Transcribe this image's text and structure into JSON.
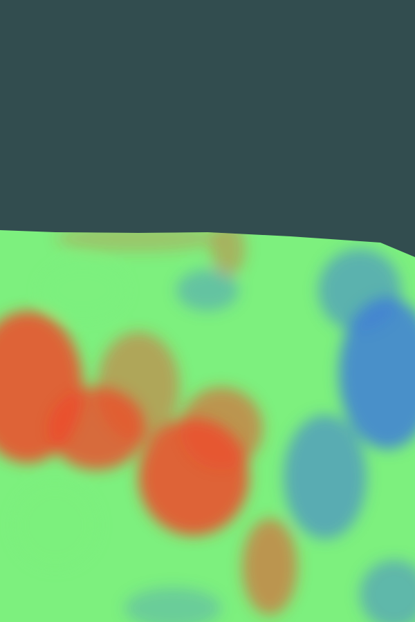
{
  "scene": {
    "background_color": "#324d4f",
    "colormap": {
      "low": "#3f7fd6",
      "mid": "#7df07e",
      "high": "#ee4b2b"
    }
  }
}
